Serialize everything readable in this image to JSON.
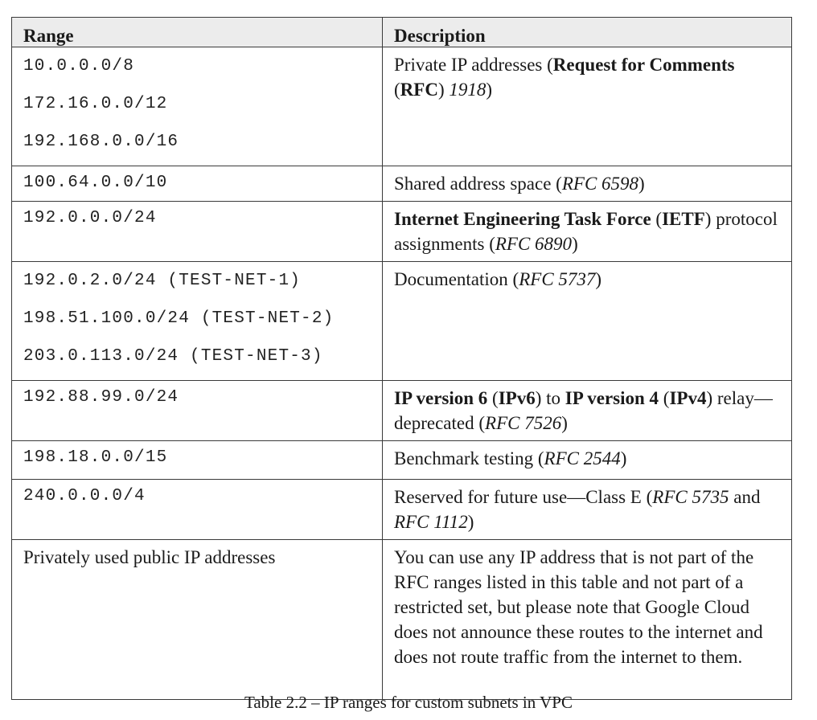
{
  "table": {
    "headers": {
      "range": "Range",
      "description": "Description"
    },
    "rows": [
      {
        "ranges": [
          "10.0.0.0/8",
          "172.16.0.0/12",
          "192.168.0.0/16"
        ],
        "desc": {
          "t1": "Private IP addresses (",
          "b1": "Request for Comments",
          "t2": " (",
          "b2": "RFC",
          "t3": ") ",
          "i1": "1918",
          "t4": ")"
        }
      },
      {
        "ranges": [
          "100.64.0.0/10"
        ],
        "desc": {
          "t1": "Shared address space (",
          "i1": "RFC 6598",
          "t2": ")"
        }
      },
      {
        "ranges": [
          "192.0.0.0/24"
        ],
        "desc": {
          "b1": "Internet Engineering Task Force",
          "t1": " (",
          "b2": "IETF",
          "t2": ") protocol assignments (",
          "i1": "RFC 6890",
          "t3": ")"
        }
      },
      {
        "ranges": [
          "192.0.2.0/24 (TEST-NET-1)",
          "198.51.100.0/24 (TEST-NET-2)",
          "203.0.113.0/24 (TEST-NET-3)"
        ],
        "desc": {
          "t1": "Documentation (",
          "i1": "RFC 5737",
          "t2": ")"
        }
      },
      {
        "ranges": [
          "192.88.99.0/24"
        ],
        "desc": {
          "b1": "IP version 6",
          "t1": " (",
          "b2": "IPv6",
          "t2": ") to ",
          "b3": "IP version 4",
          "t3": " (",
          "b4": "IPv4",
          "t4": ") relay—deprecated (",
          "i1": "RFC 7526",
          "t5": ")"
        }
      },
      {
        "ranges": [
          "198.18.0.0/15"
        ],
        "desc": {
          "t1": "Benchmark testing (",
          "i1": "RFC 2544",
          "t2": ")"
        }
      },
      {
        "ranges": [
          "240.0.0.0/4"
        ],
        "desc": {
          "t1": "Reserved for future use—Class E (",
          "i1": "RFC 5735",
          "t2": " and ",
          "i2": "RFC 1112",
          "t3": ")"
        }
      },
      {
        "range_text": "Privately used public IP addresses",
        "desc": {
          "t1": "You can use any IP address that is not part of the RFC ranges listed in this table and not part of a restricted set, but please note that Google Cloud does not announce these routes to the internet and does not route traffic from the internet to them."
        }
      }
    ]
  },
  "caption": "Table 2.2 – IP ranges for custom subnets in VPC"
}
